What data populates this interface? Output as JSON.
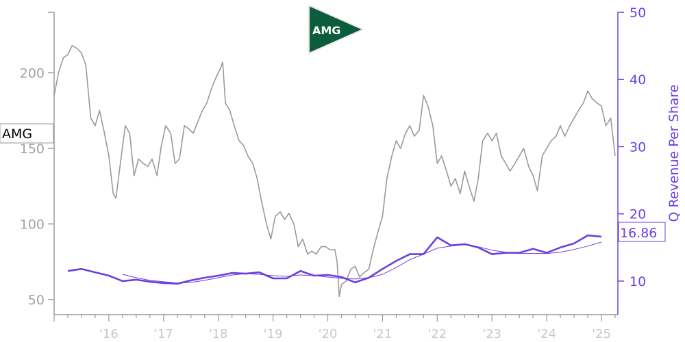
{
  "chart_data": {
    "type": "line",
    "title": "",
    "logo_text": "AMG",
    "price_badge": "AMG",
    "x_ticks": [
      "'16",
      "'17",
      "'18",
      "'19",
      "'20",
      "'21",
      "'22",
      "'23",
      "'24",
      "'25"
    ],
    "x_range": [
      2015.0,
      2025.3
    ],
    "left_axis": {
      "ticks": [
        50,
        100,
        150,
        200
      ],
      "range": [
        40,
        240
      ]
    },
    "right_axis": {
      "label": "Q Revenue Per Share",
      "ticks": [
        10,
        20,
        30,
        40,
        50
      ],
      "range": [
        5,
        50
      ]
    },
    "current_value_label": "16.86",
    "colors": {
      "price": "#999999",
      "revenue": "#6a3fe0",
      "logo": "#0d5c3e"
    },
    "series": [
      {
        "axis": "left",
        "points": [
          [
            2015.0,
            185
          ],
          [
            2015.08,
            200
          ],
          [
            2015.17,
            210
          ],
          [
            2015.25,
            212
          ],
          [
            2015.33,
            218
          ],
          [
            2015.42,
            216
          ],
          [
            2015.5,
            213
          ],
          [
            2015.58,
            205
          ],
          [
            2015.67,
            170
          ],
          [
            2015.75,
            165
          ],
          [
            2015.83,
            175
          ],
          [
            2015.92,
            160
          ],
          [
            2016.0,
            145
          ],
          [
            2016.08,
            120
          ],
          [
            2016.13,
            117
          ],
          [
            2016.21,
            140
          ],
          [
            2016.3,
            165
          ],
          [
            2016.38,
            160
          ],
          [
            2016.46,
            132
          ],
          [
            2016.54,
            143
          ],
          [
            2016.63,
            140
          ],
          [
            2016.71,
            138
          ],
          [
            2016.79,
            143
          ],
          [
            2016.88,
            132
          ],
          [
            2016.96,
            152
          ],
          [
            2017.04,
            165
          ],
          [
            2017.13,
            160
          ],
          [
            2017.21,
            140
          ],
          [
            2017.29,
            143
          ],
          [
            2017.38,
            165
          ],
          [
            2017.46,
            163
          ],
          [
            2017.54,
            160
          ],
          [
            2017.63,
            168
          ],
          [
            2017.71,
            175
          ],
          [
            2017.79,
            180
          ],
          [
            2017.88,
            190
          ],
          [
            2017.96,
            197
          ],
          [
            2018.04,
            203
          ],
          [
            2018.08,
            207
          ],
          [
            2018.13,
            180
          ],
          [
            2018.21,
            175
          ],
          [
            2018.29,
            165
          ],
          [
            2018.38,
            155
          ],
          [
            2018.46,
            152
          ],
          [
            2018.54,
            145
          ],
          [
            2018.63,
            140
          ],
          [
            2018.71,
            130
          ],
          [
            2018.79,
            115
          ],
          [
            2018.88,
            100
          ],
          [
            2018.96,
            90
          ],
          [
            2019.04,
            105
          ],
          [
            2019.13,
            108
          ],
          [
            2019.21,
            103
          ],
          [
            2019.29,
            107
          ],
          [
            2019.38,
            100
          ],
          [
            2019.46,
            85
          ],
          [
            2019.54,
            90
          ],
          [
            2019.63,
            80
          ],
          [
            2019.71,
            82
          ],
          [
            2019.79,
            80
          ],
          [
            2019.88,
            85
          ],
          [
            2019.96,
            85
          ],
          [
            2020.04,
            83
          ],
          [
            2020.13,
            83
          ],
          [
            2020.17,
            75
          ],
          [
            2020.21,
            52
          ],
          [
            2020.25,
            60
          ],
          [
            2020.33,
            62
          ],
          [
            2020.42,
            70
          ],
          [
            2020.5,
            72
          ],
          [
            2020.58,
            65
          ],
          [
            2020.67,
            68
          ],
          [
            2020.75,
            70
          ],
          [
            2020.83,
            83
          ],
          [
            2020.92,
            95
          ],
          [
            2021.0,
            105
          ],
          [
            2021.08,
            130
          ],
          [
            2021.17,
            145
          ],
          [
            2021.25,
            155
          ],
          [
            2021.33,
            150
          ],
          [
            2021.42,
            160
          ],
          [
            2021.5,
            165
          ],
          [
            2021.58,
            158
          ],
          [
            2021.67,
            162
          ],
          [
            2021.75,
            185
          ],
          [
            2021.83,
            178
          ],
          [
            2021.92,
            165
          ],
          [
            2022.0,
            140
          ],
          [
            2022.08,
            145
          ],
          [
            2022.17,
            135
          ],
          [
            2022.25,
            125
          ],
          [
            2022.33,
            130
          ],
          [
            2022.42,
            120
          ],
          [
            2022.5,
            135
          ],
          [
            2022.58,
            125
          ],
          [
            2022.67,
            115
          ],
          [
            2022.75,
            130
          ],
          [
            2022.83,
            155
          ],
          [
            2022.92,
            160
          ],
          [
            2023.0,
            155
          ],
          [
            2023.08,
            160
          ],
          [
            2023.17,
            145
          ],
          [
            2023.25,
            140
          ],
          [
            2023.33,
            135
          ],
          [
            2023.42,
            140
          ],
          [
            2023.5,
            145
          ],
          [
            2023.58,
            150
          ],
          [
            2023.67,
            138
          ],
          [
            2023.75,
            132
          ],
          [
            2023.83,
            122
          ],
          [
            2023.92,
            145
          ],
          [
            2024.0,
            150
          ],
          [
            2024.08,
            155
          ],
          [
            2024.17,
            158
          ],
          [
            2024.25,
            165
          ],
          [
            2024.33,
            158
          ],
          [
            2024.42,
            165
          ],
          [
            2024.5,
            170
          ],
          [
            2024.58,
            175
          ],
          [
            2024.67,
            180
          ],
          [
            2024.75,
            188
          ],
          [
            2024.83,
            183
          ],
          [
            2024.92,
            180
          ],
          [
            2025.0,
            178
          ],
          [
            2025.08,
            165
          ],
          [
            2025.17,
            170
          ],
          [
            2025.25,
            145
          ]
        ]
      },
      {
        "axis": "right",
        "style": "thick",
        "points": [
          [
            2015.25,
            11.5
          ],
          [
            2015.5,
            11.8
          ],
          [
            2015.75,
            11.3
          ],
          [
            2016.0,
            10.8
          ],
          [
            2016.25,
            10.0
          ],
          [
            2016.5,
            10.2
          ],
          [
            2016.75,
            9.9
          ],
          [
            2017.0,
            9.7
          ],
          [
            2017.25,
            9.6
          ],
          [
            2017.5,
            10.1
          ],
          [
            2017.75,
            10.5
          ],
          [
            2018.0,
            10.8
          ],
          [
            2018.25,
            11.2
          ],
          [
            2018.5,
            11.1
          ],
          [
            2018.75,
            11.3
          ],
          [
            2019.0,
            10.4
          ],
          [
            2019.25,
            10.4
          ],
          [
            2019.5,
            11.5
          ],
          [
            2019.75,
            10.8
          ],
          [
            2020.0,
            10.9
          ],
          [
            2020.25,
            10.6
          ],
          [
            2020.5,
            9.8
          ],
          [
            2020.75,
            10.5
          ],
          [
            2021.0,
            11.8
          ],
          [
            2021.25,
            13.0
          ],
          [
            2021.5,
            14.0
          ],
          [
            2021.75,
            14.0
          ],
          [
            2022.0,
            16.5
          ],
          [
            2022.25,
            15.3
          ],
          [
            2022.5,
            15.5
          ],
          [
            2022.75,
            15.0
          ],
          [
            2023.0,
            14.0
          ],
          [
            2023.25,
            14.2
          ],
          [
            2023.5,
            14.2
          ],
          [
            2023.75,
            14.8
          ],
          [
            2024.0,
            14.2
          ],
          [
            2024.25,
            15.0
          ],
          [
            2024.5,
            15.6
          ],
          [
            2024.75,
            16.8
          ],
          [
            2025.0,
            16.6
          ]
        ]
      },
      {
        "axis": "right",
        "style": "thin",
        "points": [
          [
            2016.25,
            11.0
          ],
          [
            2016.5,
            10.5
          ],
          [
            2016.75,
            10.1
          ],
          [
            2017.0,
            9.9
          ],
          [
            2017.25,
            9.7
          ],
          [
            2017.5,
            9.8
          ],
          [
            2017.75,
            10.1
          ],
          [
            2018.0,
            10.5
          ],
          [
            2018.25,
            10.9
          ],
          [
            2018.5,
            11.1
          ],
          [
            2018.75,
            11.0
          ],
          [
            2019.0,
            10.8
          ],
          [
            2019.25,
            10.7
          ],
          [
            2019.5,
            10.9
          ],
          [
            2019.75,
            10.8
          ],
          [
            2020.0,
            10.6
          ],
          [
            2020.25,
            10.4
          ],
          [
            2020.5,
            10.3
          ],
          [
            2020.75,
            10.5
          ],
          [
            2021.0,
            11.0
          ],
          [
            2021.25,
            12.0
          ],
          [
            2021.5,
            13.2
          ],
          [
            2021.75,
            14.0
          ],
          [
            2022.0,
            14.9
          ],
          [
            2022.25,
            15.2
          ],
          [
            2022.5,
            15.4
          ],
          [
            2022.75,
            15.1
          ],
          [
            2023.0,
            14.6
          ],
          [
            2023.25,
            14.3
          ],
          [
            2023.5,
            14.1
          ],
          [
            2023.75,
            14.1
          ],
          [
            2024.0,
            14.1
          ],
          [
            2024.25,
            14.3
          ],
          [
            2024.5,
            14.7
          ],
          [
            2024.75,
            15.2
          ],
          [
            2025.0,
            15.8
          ]
        ]
      }
    ]
  }
}
